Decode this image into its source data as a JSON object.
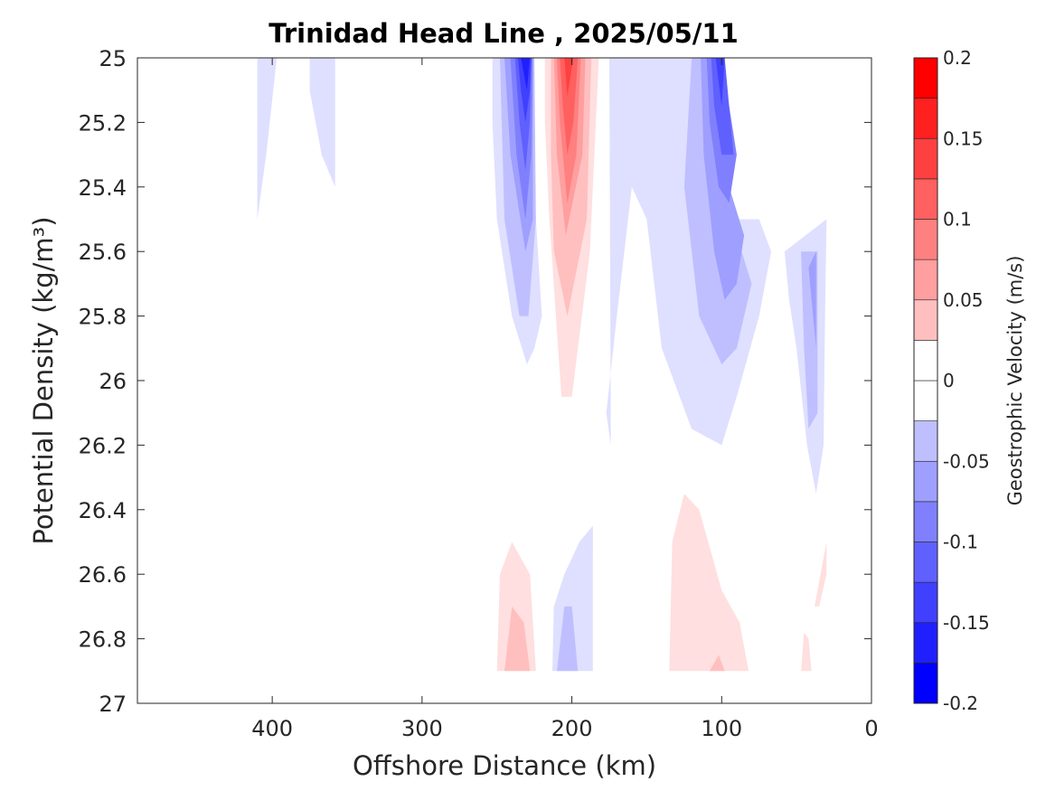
{
  "chart_data": {
    "type": "contour",
    "title": "Trinidad Head Line , 2025/05/11",
    "xlabel": "Offshore Distance (km)",
    "ylabel": "Potential Density (kg/m³)",
    "xlim": [
      490,
      0
    ],
    "ylim": [
      25,
      27
    ],
    "x_reversed": true,
    "y_reversed": true,
    "xticks": [
      400,
      300,
      200,
      100,
      0
    ],
    "xtick_labels": [
      "400",
      "300",
      "200",
      "100",
      "0"
    ],
    "yticks": [
      25,
      25.2,
      25.4,
      25.6,
      25.8,
      26,
      26.2,
      26.4,
      26.6,
      26.8,
      27
    ],
    "ytick_labels": [
      "25",
      "25.2",
      "25.4",
      "25.6",
      "25.8",
      "26",
      "26.2",
      "26.4",
      "26.6",
      "26.8",
      "27"
    ],
    "colorbar": {
      "label": "Geostrophic Velocity (m/s)",
      "range": [
        -0.2,
        0.2
      ],
      "level_step": 0.025,
      "ticks": [
        -0.2,
        -0.15,
        -0.1,
        -0.05,
        0,
        0.05,
        0.1,
        0.15,
        0.2
      ],
      "tick_labels": [
        "-0.2",
        "-0.15",
        "-0.1",
        "-0.05",
        "0",
        "0.05",
        "0.1",
        "0.15",
        "0.2"
      ],
      "neg_color": "#0000ff",
      "pos_color": "#ff0000",
      "mid_color": "#ffffff"
    },
    "contours": [
      {
        "level": -0.025,
        "points": [
          [
            410,
            25
          ],
          [
            397,
            25
          ],
          [
            404,
            25.3
          ],
          [
            410,
            25.5
          ]
        ]
      },
      {
        "level": -0.025,
        "points": [
          [
            375,
            25
          ],
          [
            358,
            25
          ],
          [
            358,
            25.4
          ],
          [
            367,
            25.3
          ],
          [
            375,
            25.1
          ]
        ]
      },
      {
        "level": -0.025,
        "points": [
          [
            253,
            25
          ],
          [
            240,
            25
          ],
          [
            229,
            25
          ],
          [
            224,
            25.5
          ],
          [
            220,
            25.8
          ],
          [
            225,
            25.9
          ],
          [
            230,
            25.95
          ],
          [
            240,
            25.8
          ],
          [
            250,
            25.5
          ],
          [
            253,
            25.2
          ]
        ]
      },
      {
        "level": -0.05,
        "points": [
          [
            248,
            25
          ],
          [
            225,
            25
          ],
          [
            224,
            25.5
          ],
          [
            229,
            25.8
          ],
          [
            235,
            25.8
          ],
          [
            245,
            25.5
          ]
        ]
      },
      {
        "level": -0.075,
        "points": [
          [
            245,
            25
          ],
          [
            226,
            25
          ],
          [
            226,
            25.5
          ],
          [
            231,
            25.6
          ],
          [
            241,
            25.3
          ]
        ]
      },
      {
        "level": -0.1,
        "points": [
          [
            241,
            25
          ],
          [
            226,
            25
          ],
          [
            227,
            25.3
          ],
          [
            231,
            25.5
          ],
          [
            237,
            25.3
          ]
        ]
      },
      {
        "level": -0.125,
        "points": [
          [
            238,
            25
          ],
          [
            227,
            25
          ],
          [
            228,
            25.2
          ],
          [
            231,
            25.35
          ],
          [
            235,
            25.2
          ]
        ]
      },
      {
        "level": -0.15,
        "points": [
          [
            236,
            25
          ],
          [
            227,
            25
          ],
          [
            228,
            25.1
          ],
          [
            231,
            25.2
          ],
          [
            234,
            25.1
          ]
        ]
      },
      {
        "level": -0.175,
        "points": [
          [
            234,
            25
          ],
          [
            228,
            25
          ],
          [
            230,
            25.1
          ],
          [
            232,
            25.05
          ]
        ]
      },
      {
        "level": 0.025,
        "points": [
          [
            218,
            25
          ],
          [
            182,
            25
          ],
          [
            188,
            25.6
          ],
          [
            200,
            26.05
          ],
          [
            207,
            26.05
          ],
          [
            215,
            25.5
          ],
          [
            218,
            25.2
          ]
        ]
      },
      {
        "level": 0.05,
        "points": [
          [
            214,
            25
          ],
          [
            187,
            25
          ],
          [
            190,
            25.5
          ],
          [
            203,
            25.8
          ],
          [
            212,
            25.6
          ],
          [
            214,
            25.3
          ]
        ]
      },
      {
        "level": 0.075,
        "points": [
          [
            212,
            25
          ],
          [
            191,
            25
          ],
          [
            193,
            25.3
          ],
          [
            204,
            25.55
          ],
          [
            210,
            25.3
          ]
        ]
      },
      {
        "level": 0.1,
        "points": [
          [
            210,
            25
          ],
          [
            194,
            25
          ],
          [
            197,
            25.3
          ],
          [
            203,
            25.45
          ],
          [
            208,
            25.2
          ]
        ]
      },
      {
        "level": 0.125,
        "points": [
          [
            208,
            25
          ],
          [
            196,
            25
          ],
          [
            199,
            25.2
          ],
          [
            203,
            25.3
          ],
          [
            206,
            25.15
          ]
        ]
      },
      {
        "level": 0.15,
        "points": [
          [
            205,
            25
          ],
          [
            199,
            25
          ],
          [
            203,
            25.12
          ]
        ]
      },
      {
        "level": -0.025,
        "points": [
          [
            175,
            25
          ],
          [
            120,
            25
          ],
          [
            100,
            25.4
          ],
          [
            90,
            25.5
          ],
          [
            75,
            25.5
          ],
          [
            67,
            25.6
          ],
          [
            75,
            25.8
          ],
          [
            90,
            26.05
          ],
          [
            100,
            26.2
          ],
          [
            120,
            26.15
          ],
          [
            140,
            25.9
          ],
          [
            150,
            25.5
          ],
          [
            160,
            25.4
          ],
          [
            170,
            25.8
          ],
          [
            177,
            26.1
          ],
          [
            174,
            26.2
          ]
        ]
      },
      {
        "level": -0.05,
        "points": [
          [
            120,
            25
          ],
          [
            107,
            25
          ],
          [
            100,
            25.4
          ],
          [
            90,
            25.55
          ],
          [
            80,
            25.7
          ],
          [
            90,
            25.9
          ],
          [
            100,
            25.95
          ],
          [
            115,
            25.8
          ],
          [
            125,
            25.4
          ]
        ]
      },
      {
        "level": -0.075,
        "points": [
          [
            114,
            25
          ],
          [
            104,
            25
          ],
          [
            95,
            25.4
          ],
          [
            85,
            25.55
          ],
          [
            90,
            25.7
          ],
          [
            98,
            25.75
          ],
          [
            105,
            25.6
          ],
          [
            112,
            25.3
          ]
        ]
      },
      {
        "level": -0.1,
        "points": [
          [
            110,
            25
          ],
          [
            100,
            25
          ],
          [
            90,
            25.3
          ],
          [
            95,
            25.45
          ],
          [
            102,
            25.4
          ],
          [
            108,
            25.2
          ]
        ]
      },
      {
        "level": -0.125,
        "points": [
          [
            107,
            25
          ],
          [
            98,
            25
          ],
          [
            92,
            25.3
          ],
          [
            100,
            25.3
          ],
          [
            105,
            25.15
          ]
        ]
      },
      {
        "level": -0.15,
        "points": [
          [
            104,
            25
          ],
          [
            98,
            25
          ],
          [
            100,
            25.15
          ]
        ]
      },
      {
        "level": -0.025,
        "points": [
          [
            58,
            25.6
          ],
          [
            30,
            25.5
          ],
          [
            31,
            25.8
          ],
          [
            32,
            26.2
          ],
          [
            37,
            26.35
          ],
          [
            43,
            26.2
          ],
          [
            50,
            25.9
          ],
          [
            55,
            25.75
          ]
        ]
      },
      {
        "level": -0.05,
        "points": [
          [
            47,
            25.6
          ],
          [
            36,
            25.6
          ],
          [
            36,
            26.1
          ],
          [
            42,
            26.15
          ],
          [
            45,
            25.9
          ]
        ]
      },
      {
        "level": -0.075,
        "points": [
          [
            42,
            25.65
          ],
          [
            37,
            25.6
          ],
          [
            37,
            25.9
          ]
        ]
      },
      {
        "level": 0.025,
        "points": [
          [
            250,
            26.9
          ],
          [
            224,
            26.9
          ],
          [
            228,
            26.6
          ],
          [
            240,
            26.5
          ],
          [
            248,
            26.6
          ]
        ]
      },
      {
        "level": 0.05,
        "points": [
          [
            245,
            26.9
          ],
          [
            228,
            26.9
          ],
          [
            232,
            26.75
          ],
          [
            240,
            26.7
          ]
        ]
      },
      {
        "level": -0.025,
        "points": [
          [
            213,
            26.9
          ],
          [
            186,
            26.9
          ],
          [
            186,
            26.45
          ],
          [
            195,
            26.5
          ],
          [
            205,
            26.6
          ],
          [
            212,
            26.7
          ]
        ]
      },
      {
        "level": -0.05,
        "points": [
          [
            210,
            26.9
          ],
          [
            196,
            26.9
          ],
          [
            200,
            26.7
          ],
          [
            205,
            26.7
          ]
        ]
      },
      {
        "level": 0.025,
        "points": [
          [
            135,
            26.9
          ],
          [
            82,
            26.9
          ],
          [
            88,
            26.75
          ],
          [
            100,
            26.65
          ],
          [
            115,
            26.4
          ],
          [
            125,
            26.35
          ],
          [
            133,
            26.5
          ]
        ]
      },
      {
        "level": 0.05,
        "points": [
          [
            108,
            26.9
          ],
          [
            98,
            26.9
          ],
          [
            102,
            26.85
          ]
        ]
      },
      {
        "level": 0.025,
        "points": [
          [
            47,
            26.9
          ],
          [
            40,
            26.9
          ],
          [
            42,
            26.8
          ],
          [
            45,
            26.78
          ]
        ]
      },
      {
        "level": 0.025,
        "points": [
          [
            38,
            26.7
          ],
          [
            30,
            26.5
          ],
          [
            30,
            26.6
          ],
          [
            35,
            26.7
          ]
        ]
      }
    ]
  }
}
